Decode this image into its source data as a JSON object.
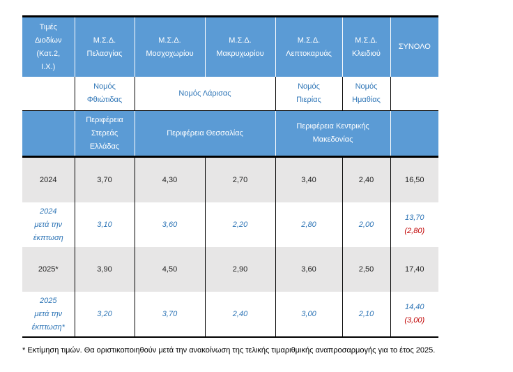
{
  "header": {
    "first_col": [
      "Τιμές",
      "Διοδίων",
      "(Κατ.2,",
      "Ι.Χ.)"
    ],
    "stations": [
      [
        "Μ.Σ.Δ.",
        "Πελασγίας"
      ],
      [
        "Μ.Σ.Δ.",
        "Μοσχοχωρίου"
      ],
      [
        "Μ.Σ.Δ.",
        "Μακρυχωρίου"
      ],
      [
        "Μ.Σ.Δ.",
        "Λεπτοκαρυάς"
      ],
      [
        "Μ.Σ.Δ.",
        "Κλειδιού"
      ]
    ],
    "total": "ΣΥΝΟΛΟ"
  },
  "nomos": [
    [
      "Νομός",
      "Φθιώτιδας"
    ],
    [
      "Νομός Λάρισας"
    ],
    [
      "Νομός",
      "Πιερίας"
    ],
    [
      "Νομός",
      "Ημαθίας"
    ]
  ],
  "perifereia": [
    [
      "Περιφέρεια",
      "Στερεάς",
      "Ελλάδας"
    ],
    [
      "Περιφέρεια Θεσσαλίας"
    ],
    [
      "Περιφέρεια Κεντρικής",
      "Μακεδονίας"
    ]
  ],
  "rows": [
    {
      "label": [
        "2024"
      ],
      "values": [
        "3,70",
        "4,30",
        "2,70",
        "3,40",
        "2,40"
      ],
      "total": "16,50",
      "reduction": ""
    },
    {
      "label": [
        "2024",
        "μετά την",
        "έκπτωση"
      ],
      "values": [
        "3,10",
        "3,60",
        "2,20",
        "2,80",
        "2,00"
      ],
      "total": "13,70",
      "reduction": "(2,80)"
    },
    {
      "label": [
        "2025*"
      ],
      "values": [
        "3,90",
        "4,50",
        "2,90",
        "3,60",
        "2,50"
      ],
      "total": "17,40",
      "reduction": ""
    },
    {
      "label": [
        "2025",
        "μετά την",
        "έκπτωση*"
      ],
      "values": [
        "3,20",
        "3,70",
        "2,40",
        "3,00",
        "2,10"
      ],
      "total": "14,40",
      "reduction": "(3,00)"
    }
  ],
  "footnote": "* Εκτίμηση τιμών. Θα οριστικοποιηθούν μετά την ανακοίνωση της τελικής τιμαριθμικής αναπροσαρμογής για το έτος 2025.",
  "colors": {
    "header_bg": "#5b9bd5",
    "accent_text": "#2e75b6",
    "reduction_text": "#c00000",
    "gray_row": "#e7e6e6"
  }
}
